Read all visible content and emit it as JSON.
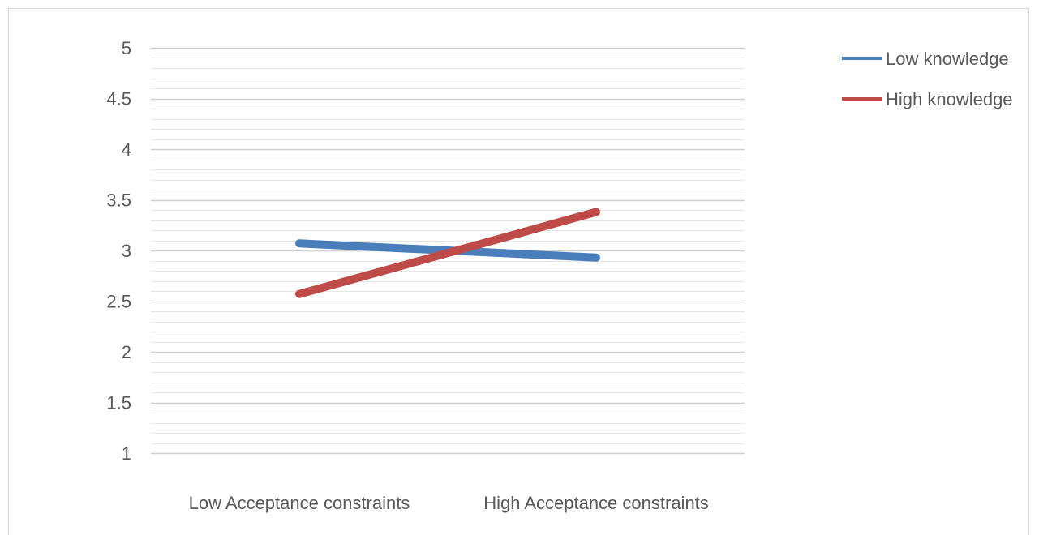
{
  "chart_data": {
    "type": "line",
    "title": "",
    "xlabel": "",
    "ylabel": "",
    "categories": [
      "Low Acceptance constraints",
      "High Acceptance constraints"
    ],
    "ylim": [
      1,
      5
    ],
    "y_ticks": [
      "5",
      "4.5",
      "4",
      "3.5",
      "3",
      "2.5",
      "2",
      "1.5",
      "1"
    ],
    "grid": true,
    "legend_position": "top-right",
    "series": [
      {
        "name": "Low knowledge",
        "color": "#4a7ebb",
        "values": [
          3.07,
          2.93
        ]
      },
      {
        "name": "High knowledge",
        "color": "#be4b48",
        "values": [
          2.57,
          3.38
        ]
      }
    ]
  }
}
